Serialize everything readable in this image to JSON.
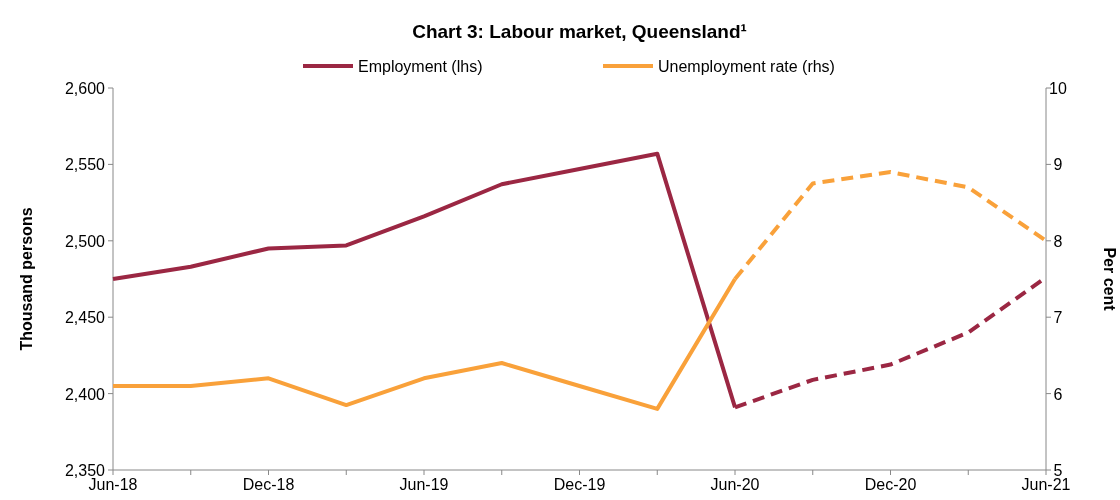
{
  "chart_data": {
    "type": "line",
    "title": "Chart 3: Labour market, Queensland¹",
    "ylabel": "Thousand persons",
    "y2label": "Per cent",
    "categories": [
      "Jun-18",
      null,
      "Dec-18",
      null,
      "Jun-19",
      null,
      "Dec-19",
      null,
      "Jun-20",
      null,
      "Dec-20",
      null,
      "Jun-21"
    ],
    "series": [
      {
        "name": "Employment (lhs)",
        "color": "#9b2743",
        "line_style": "solid",
        "values": [
          2475,
          2483,
          2495,
          2497,
          2516,
          2537,
          2547,
          2557,
          2391,
          null,
          null,
          null,
          null
        ]
      },
      {
        "color": "#9b2743",
        "line_style": "dashed",
        "values": [
          null,
          null,
          null,
          null,
          null,
          null,
          null,
          null,
          2391,
          2409,
          2419,
          2440,
          2476
        ]
      },
      {
        "name": "Unemployment rate (rhs)",
        "color": "#f9a13a",
        "axis": "y2",
        "line_style": "solid",
        "values": [
          6.1,
          6.1,
          6.2,
          5.85,
          6.2,
          6.4,
          6.1,
          5.8,
          7.5,
          null,
          null,
          null,
          null
        ]
      },
      {
        "color": "#f9a13a",
        "axis": "y2",
        "line_style": "dashed",
        "values": [
          null,
          null,
          null,
          null,
          null,
          null,
          null,
          null,
          7.5,
          8.75,
          8.9,
          8.7,
          8.0
        ]
      }
    ],
    "ylim": [
      2350,
      2600
    ],
    "yticks": [
      {
        "value": 2350,
        "label": "2,350"
      },
      {
        "value": 2400,
        "label": "2,400"
      },
      {
        "value": 2450,
        "label": "2,450"
      },
      {
        "value": 2500,
        "label": "2,500"
      },
      {
        "value": 2550,
        "label": "2,550"
      },
      {
        "value": 2600,
        "label": "2,600"
      }
    ],
    "y2lim": [
      5,
      10
    ],
    "y2ticks": [
      5,
      6,
      7,
      8,
      9,
      10
    ],
    "legend": "top",
    "grid": false,
    "marker": "none"
  }
}
